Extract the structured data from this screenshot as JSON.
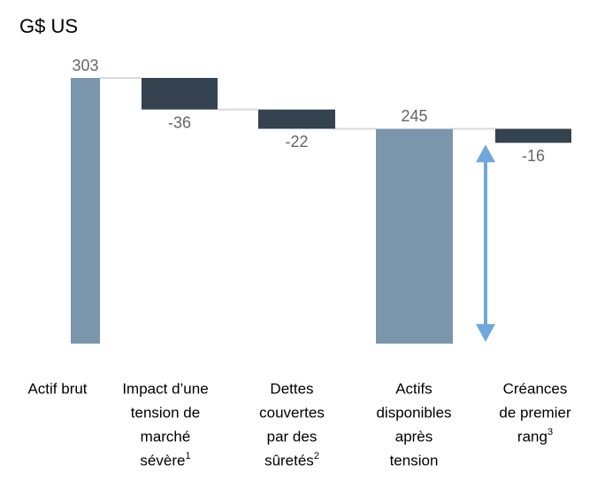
{
  "chart_data": {
    "type": "waterfall",
    "title": "G$ US",
    "categories": [
      [
        "Actif brut"
      ],
      [
        "Impact d’une",
        "tension de",
        "marché",
        "sévère"
      ],
      [
        "Dettes",
        "couvertes",
        "par des",
        "sûretés"
      ],
      [
        "Actifs",
        "disponibles",
        "après",
        "tension"
      ],
      [
        "Créances",
        "de premier",
        "rang"
      ]
    ],
    "footnotes": [
      null,
      "1",
      "2",
      null,
      "3"
    ],
    "values": [
      303,
      -36,
      -22,
      245,
      -16
    ],
    "kinds": [
      "total",
      "delta",
      "delta",
      "total",
      "delta"
    ],
    "colors": {
      "total": "#7b96ad",
      "delta": "#34434f",
      "arrow": "#6fa8dc",
      "connector": "#d9d9d9"
    },
    "ylim": [
      0,
      303
    ]
  }
}
